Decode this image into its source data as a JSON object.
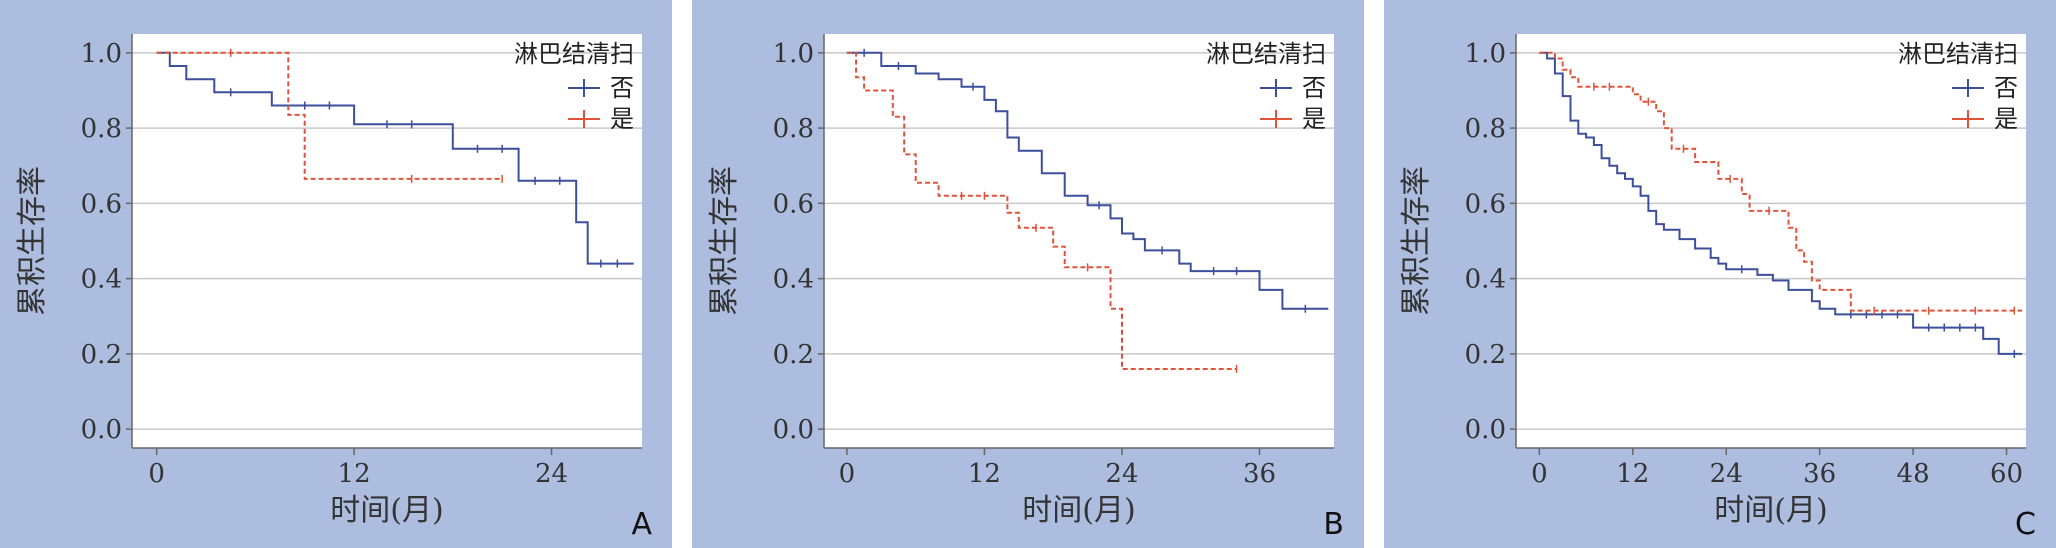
{
  "figure": {
    "colors": {
      "panel_bg": "#adbde0",
      "no_line": "#3c4f9c",
      "yes_line": "#e0533a"
    },
    "legend": {
      "title": "淋巴结清扫",
      "items": [
        "否",
        "是"
      ]
    }
  },
  "chart_data": [
    {
      "type": "line",
      "panel_label": "A",
      "xlabel": "时间(月)",
      "ylabel": "累积生存率",
      "xlim": [
        -1.5,
        29.5
      ],
      "ylim": [
        -0.05,
        1.05
      ],
      "xticks": [
        0,
        12,
        24
      ],
      "yticks": [
        "0.0",
        "0.2",
        "0.4",
        "0.6",
        "0.8",
        "1.0"
      ],
      "grid": "horizontal",
      "legend_position": "top-right",
      "series": [
        {
          "name": "否",
          "color": "#3c4f9c",
          "style": "solid",
          "steps": [
            [
              0,
              1.0
            ],
            [
              0.8,
              1.0
            ],
            [
              0.8,
              0.965
            ],
            [
              1.8,
              0.965
            ],
            [
              1.8,
              0.93
            ],
            [
              3.5,
              0.93
            ],
            [
              3.5,
              0.895
            ],
            [
              7,
              0.895
            ],
            [
              7,
              0.86
            ],
            [
              12,
              0.86
            ],
            [
              12,
              0.81
            ],
            [
              18,
              0.81
            ],
            [
              18,
              0.745
            ],
            [
              22,
              0.745
            ],
            [
              22,
              0.66
            ],
            [
              25.5,
              0.66
            ],
            [
              25.5,
              0.55
            ],
            [
              26.2,
              0.55
            ],
            [
              26.2,
              0.44
            ],
            [
              29,
              0.44
            ]
          ],
          "censored": [
            [
              4.5,
              0.895
            ],
            [
              9,
              0.86
            ],
            [
              10.5,
              0.86
            ],
            [
              14,
              0.81
            ],
            [
              15.5,
              0.81
            ],
            [
              19.5,
              0.745
            ],
            [
              21,
              0.745
            ],
            [
              23,
              0.66
            ],
            [
              24.5,
              0.66
            ],
            [
              27,
              0.44
            ],
            [
              28,
              0.44
            ]
          ]
        },
        {
          "name": "是",
          "color": "#e0533a",
          "style": "dashed",
          "steps": [
            [
              0,
              1.0
            ],
            [
              8,
              1.0
            ],
            [
              8,
              0.835
            ],
            [
              9,
              0.835
            ],
            [
              9,
              0.665
            ],
            [
              21,
              0.665
            ]
          ],
          "censored": [
            [
              4.5,
              1.0
            ],
            [
              15.5,
              0.665
            ],
            [
              21,
              0.665
            ]
          ]
        }
      ]
    },
    {
      "type": "line",
      "panel_label": "B",
      "xlabel": "时间(月)",
      "ylabel": "累积生存率",
      "xlim": [
        -2,
        42.5
      ],
      "ylim": [
        -0.05,
        1.05
      ],
      "xticks": [
        0,
        12,
        24,
        36
      ],
      "yticks": [
        "0.0",
        "0.2",
        "0.4",
        "0.6",
        "0.8",
        "1.0"
      ],
      "grid": "horizontal",
      "legend_position": "top-right",
      "series": [
        {
          "name": "否",
          "color": "#3c4f9c",
          "style": "solid",
          "steps": [
            [
              0,
              1.0
            ],
            [
              3,
              1.0
            ],
            [
              3,
              0.965
            ],
            [
              6,
              0.965
            ],
            [
              6,
              0.945
            ],
            [
              8,
              0.945
            ],
            [
              8,
              0.93
            ],
            [
              10,
              0.93
            ],
            [
              10,
              0.91
            ],
            [
              12,
              0.91
            ],
            [
              12,
              0.875
            ],
            [
              13,
              0.875
            ],
            [
              13,
              0.845
            ],
            [
              14,
              0.845
            ],
            [
              14,
              0.775
            ],
            [
              15,
              0.775
            ],
            [
              15,
              0.74
            ],
            [
              17,
              0.74
            ],
            [
              17,
              0.68
            ],
            [
              19,
              0.68
            ],
            [
              19,
              0.62
            ],
            [
              21,
              0.62
            ],
            [
              21,
              0.595
            ],
            [
              23,
              0.595
            ],
            [
              23,
              0.56
            ],
            [
              24,
              0.56
            ],
            [
              24,
              0.52
            ],
            [
              25,
              0.52
            ],
            [
              25,
              0.505
            ],
            [
              26,
              0.505
            ],
            [
              26,
              0.475
            ],
            [
              29,
              0.475
            ],
            [
              29,
              0.44
            ],
            [
              30,
              0.44
            ],
            [
              30,
              0.42
            ],
            [
              36,
              0.42
            ],
            [
              36,
              0.37
            ],
            [
              38,
              0.37
            ],
            [
              38,
              0.32
            ],
            [
              42,
              0.32
            ]
          ],
          "censored": [
            [
              1.5,
              1.0
            ],
            [
              4.5,
              0.965
            ],
            [
              11,
              0.91
            ],
            [
              22,
              0.595
            ],
            [
              27.5,
              0.475
            ],
            [
              32,
              0.42
            ],
            [
              34,
              0.42
            ],
            [
              40,
              0.32
            ]
          ]
        },
        {
          "name": "是",
          "color": "#e0533a",
          "style": "dashed",
          "steps": [
            [
              0,
              1.0
            ],
            [
              0.8,
              1.0
            ],
            [
              0.8,
              0.935
            ],
            [
              1.5,
              0.935
            ],
            [
              1.5,
              0.9
            ],
            [
              4,
              0.9
            ],
            [
              4,
              0.83
            ],
            [
              5,
              0.83
            ],
            [
              5,
              0.73
            ],
            [
              6,
              0.73
            ],
            [
              6,
              0.655
            ],
            [
              8,
              0.655
            ],
            [
              8,
              0.62
            ],
            [
              14,
              0.62
            ],
            [
              14,
              0.575
            ],
            [
              15,
              0.575
            ],
            [
              15,
              0.535
            ],
            [
              18,
              0.535
            ],
            [
              18,
              0.485
            ],
            [
              19,
              0.485
            ],
            [
              19,
              0.43
            ],
            [
              23,
              0.43
            ],
            [
              23,
              0.32
            ],
            [
              24,
              0.32
            ],
            [
              24,
              0.16
            ],
            [
              34,
              0.16
            ]
          ],
          "censored": [
            [
              10,
              0.62
            ],
            [
              12,
              0.62
            ],
            [
              16.5,
              0.535
            ],
            [
              21,
              0.43
            ],
            [
              34,
              0.16
            ]
          ]
        }
      ]
    },
    {
      "type": "line",
      "panel_label": "C",
      "xlabel": "时间(月)",
      "ylabel": "累积生存率",
      "xlim": [
        -3,
        62.5
      ],
      "ylim": [
        -0.05,
        1.05
      ],
      "xticks": [
        0,
        12,
        24,
        36,
        48,
        60
      ],
      "yticks": [
        "0.0",
        "0.2",
        "0.4",
        "0.6",
        "0.8",
        "1.0"
      ],
      "grid": "horizontal",
      "legend_position": "top-right",
      "series": [
        {
          "name": "否",
          "color": "#3c4f9c",
          "style": "solid",
          "steps": [
            [
              0,
              1.0
            ],
            [
              1,
              1.0
            ],
            [
              1,
              0.985
            ],
            [
              2,
              0.985
            ],
            [
              2,
              0.945
            ],
            [
              3,
              0.945
            ],
            [
              3,
              0.885
            ],
            [
              4,
              0.885
            ],
            [
              4,
              0.82
            ],
            [
              5,
              0.82
            ],
            [
              5,
              0.785
            ],
            [
              6,
              0.785
            ],
            [
              6,
              0.775
            ],
            [
              7,
              0.775
            ],
            [
              7,
              0.755
            ],
            [
              8,
              0.755
            ],
            [
              8,
              0.72
            ],
            [
              9,
              0.72
            ],
            [
              9,
              0.7
            ],
            [
              10,
              0.7
            ],
            [
              10,
              0.68
            ],
            [
              11,
              0.68
            ],
            [
              11,
              0.665
            ],
            [
              12,
              0.665
            ],
            [
              12,
              0.645
            ],
            [
              13,
              0.645
            ],
            [
              13,
              0.62
            ],
            [
              14,
              0.62
            ],
            [
              14,
              0.58
            ],
            [
              15,
              0.58
            ],
            [
              15,
              0.545
            ],
            [
              16,
              0.545
            ],
            [
              16,
              0.53
            ],
            [
              18,
              0.53
            ],
            [
              18,
              0.505
            ],
            [
              20,
              0.505
            ],
            [
              20,
              0.48
            ],
            [
              22,
              0.48
            ],
            [
              22,
              0.455
            ],
            [
              23,
              0.455
            ],
            [
              23,
              0.44
            ],
            [
              24,
              0.44
            ],
            [
              24,
              0.425
            ],
            [
              28,
              0.425
            ],
            [
              28,
              0.41
            ],
            [
              30,
              0.41
            ],
            [
              30,
              0.395
            ],
            [
              32,
              0.395
            ],
            [
              32,
              0.37
            ],
            [
              35,
              0.37
            ],
            [
              35,
              0.34
            ],
            [
              36,
              0.34
            ],
            [
              36,
              0.32
            ],
            [
              38,
              0.32
            ],
            [
              38,
              0.305
            ],
            [
              48,
              0.305
            ],
            [
              48,
              0.27
            ],
            [
              57,
              0.27
            ],
            [
              57,
              0.24
            ],
            [
              59,
              0.24
            ],
            [
              59,
              0.2
            ],
            [
              62,
              0.2
            ]
          ],
          "censored": [
            [
              26,
              0.425
            ],
            [
              40,
              0.305
            ],
            [
              42,
              0.305
            ],
            [
              44,
              0.305
            ],
            [
              46,
              0.305
            ],
            [
              50,
              0.27
            ],
            [
              52,
              0.27
            ],
            [
              54,
              0.27
            ],
            [
              56,
              0.27
            ],
            [
              61,
              0.2
            ]
          ]
        },
        {
          "name": "是",
          "color": "#e0533a",
          "style": "dashed",
          "steps": [
            [
              0,
              1.0
            ],
            [
              2,
              1.0
            ],
            [
              2,
              0.985
            ],
            [
              3,
              0.985
            ],
            [
              3,
              0.955
            ],
            [
              4,
              0.955
            ],
            [
              4,
              0.935
            ],
            [
              5,
              0.935
            ],
            [
              5,
              0.91
            ],
            [
              12,
              0.91
            ],
            [
              12,
              0.89
            ],
            [
              13,
              0.89
            ],
            [
              13,
              0.87
            ],
            [
              15,
              0.87
            ],
            [
              15,
              0.845
            ],
            [
              16,
              0.845
            ],
            [
              16,
              0.8
            ],
            [
              17,
              0.8
            ],
            [
              17,
              0.745
            ],
            [
              20,
              0.745
            ],
            [
              20,
              0.71
            ],
            [
              23,
              0.71
            ],
            [
              23,
              0.665
            ],
            [
              26,
              0.665
            ],
            [
              26,
              0.625
            ],
            [
              27,
              0.625
            ],
            [
              27,
              0.58
            ],
            [
              32,
              0.58
            ],
            [
              32,
              0.535
            ],
            [
              33,
              0.535
            ],
            [
              33,
              0.475
            ],
            [
              34,
              0.475
            ],
            [
              34,
              0.445
            ],
            [
              35,
              0.445
            ],
            [
              35,
              0.395
            ],
            [
              36,
              0.395
            ],
            [
              36,
              0.37
            ],
            [
              40,
              0.37
            ],
            [
              40,
              0.315
            ],
            [
              62,
              0.315
            ]
          ],
          "censored": [
            [
              7,
              0.91
            ],
            [
              9,
              0.91
            ],
            [
              14,
              0.87
            ],
            [
              18.5,
              0.745
            ],
            [
              24.5,
              0.665
            ],
            [
              29.5,
              0.58
            ],
            [
              43,
              0.315
            ],
            [
              50,
              0.315
            ],
            [
              56,
              0.315
            ],
            [
              61,
              0.315
            ]
          ]
        }
      ]
    }
  ]
}
